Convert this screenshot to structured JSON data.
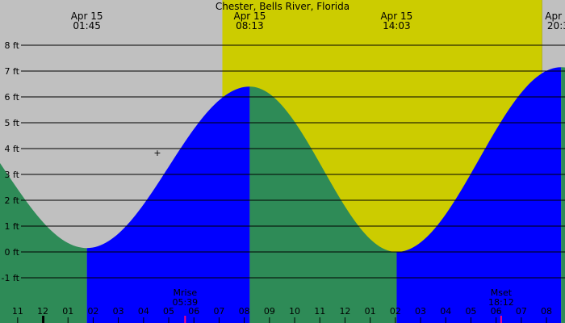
{
  "chart_data": {
    "type": "area",
    "title": "Chester, Bells River, Florida",
    "y_unit": "ft",
    "ylim": [
      -2,
      8.5
    ],
    "y_ticks": [
      {
        "value": 8,
        "label": "8 ft"
      },
      {
        "value": 7,
        "label": "7 ft"
      },
      {
        "value": 6,
        "label": "6 ft"
      },
      {
        "value": 5,
        "label": "5 ft"
      },
      {
        "value": 4,
        "label": "4 ft"
      },
      {
        "value": 3,
        "label": "3 ft"
      },
      {
        "value": 2,
        "label": "2 ft"
      },
      {
        "value": 1,
        "label": "1 ft"
      },
      {
        "value": 0,
        "label": "0 ft"
      },
      {
        "value": -1,
        "label": "-1 ft"
      }
    ],
    "x_range_hours": [
      22.83,
      33.5
    ],
    "x_tick_labels": [
      "11",
      "12",
      "01",
      "02",
      "03",
      "04",
      "05",
      "06",
      "07",
      "08",
      "09",
      "10",
      "11",
      "12",
      "01",
      "02",
      "03",
      "04",
      "05",
      "06",
      "07",
      "08",
      "09"
    ],
    "x_tick_start_hour": 23,
    "tide_extremes": [
      {
        "date": "Apr 15",
        "time": "01:45",
        "hour": 1.75,
        "height": 0.15,
        "kind": "low"
      },
      {
        "date": "Apr 15",
        "time": "08:13",
        "hour": 8.217,
        "height": 6.4,
        "kind": "high"
      },
      {
        "date": "Apr 15",
        "time": "14:03",
        "hour": 14.05,
        "height": 0.0,
        "kind": "low"
      },
      {
        "date": "Apr 15",
        "time": "20:35",
        "hour": 20.583,
        "height": 7.15,
        "kind": "high"
      }
    ],
    "daylight": {
      "start_hour": 7.13,
      "end_hour": 19.83
    },
    "moon_events": [
      {
        "label": "Mrise",
        "time": "05:39",
        "hour": 5.65
      },
      {
        "label": "Mset",
        "time": "18:12",
        "hour": 18.2
      }
    ],
    "colors": {
      "night": "#c0c0c0",
      "day": "#cccc00",
      "rising": "#0000ff",
      "falling": "#2e8b57",
      "gridline": "#000000",
      "moon_tick": "#ff0080"
    }
  }
}
